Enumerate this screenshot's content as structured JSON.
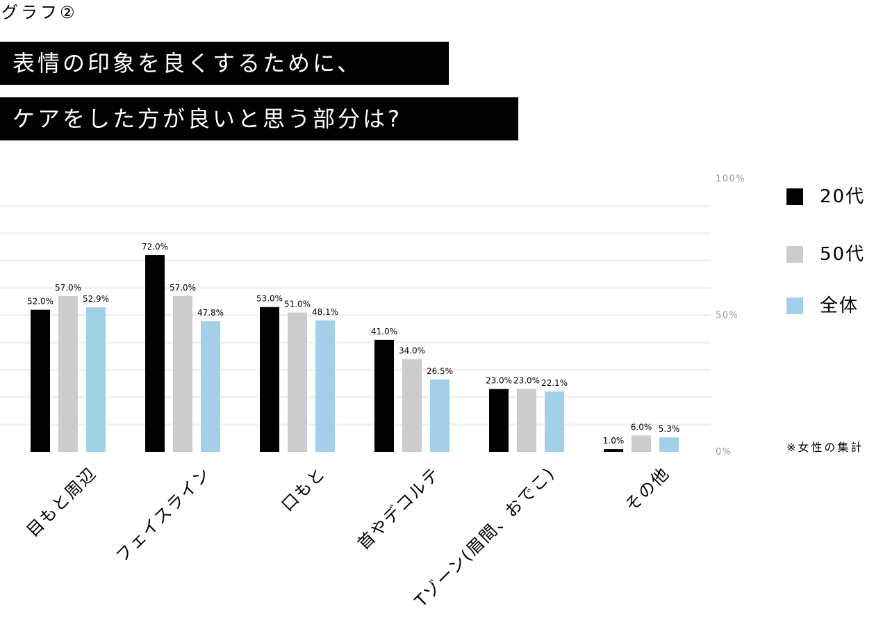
{
  "graph_label": "グラフ②",
  "title_lines": [
    "表情の印象を良くするために、",
    "ケアをした方が良いと思う部分は?"
  ],
  "footnote": "※女性の集計",
  "chart_data": {
    "type": "bar",
    "title": "表情の印象を良くするために、ケアをした方が良いと思う部分は?",
    "categories": [
      "目もと周辺",
      "フェイスライン",
      "口もと",
      "首やデコルテ",
      "Tゾーン(眉間、おでこ)",
      "その他"
    ],
    "series": [
      {
        "name": "20代",
        "color": "#000000",
        "values": [
          52.0,
          72.0,
          53.0,
          41.0,
          23.0,
          1.0
        ]
      },
      {
        "name": "50代",
        "color": "#cccccc",
        "values": [
          57.0,
          57.0,
          51.0,
          34.0,
          23.0,
          6.0
        ]
      },
      {
        "name": "全体",
        "color": "#a3cfe8",
        "values": [
          52.9,
          47.8,
          48.1,
          26.5,
          22.1,
          5.3
        ]
      }
    ],
    "y_ticks": [
      {
        "value": 0,
        "label": "0%"
      },
      {
        "value": 50,
        "label": "50%"
      },
      {
        "value": 100,
        "label": "100%"
      }
    ],
    "ylim": [
      0,
      100
    ],
    "unit": "%",
    "grid": true,
    "legend_position": "right"
  }
}
